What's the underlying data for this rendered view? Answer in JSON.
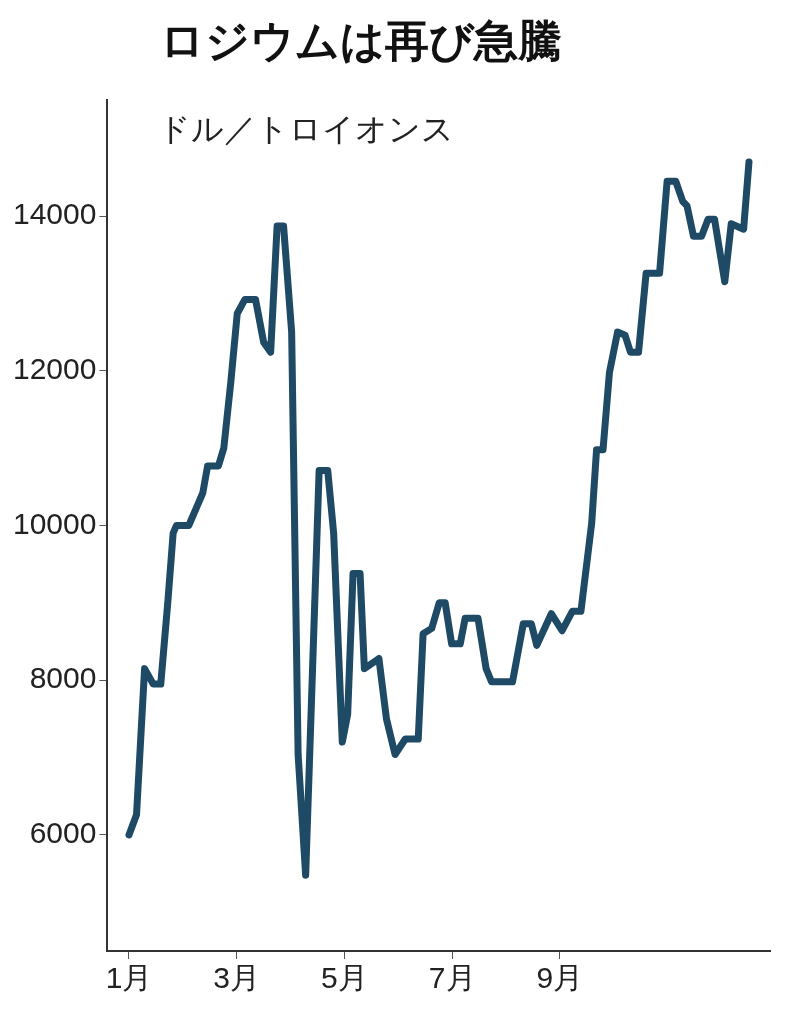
{
  "chart_data": {
    "type": "line",
    "title": "ロジウムは再び急騰",
    "ylabel": "ドル／トロイオンス",
    "x": [
      1.0,
      1.14,
      1.29,
      1.45,
      1.59,
      1.72,
      1.82,
      1.88,
      2.11,
      2.37,
      2.46,
      2.66,
      2.76,
      2.89,
      3.01,
      3.15,
      3.35,
      3.5,
      3.63,
      3.75,
      3.87,
      4.02,
      4.14,
      4.28,
      4.38,
      4.53,
      4.69,
      4.8,
      4.96,
      5.06,
      5.16,
      5.29,
      5.37,
      5.64,
      5.78,
      5.94,
      6.13,
      6.37,
      6.46,
      6.62,
      6.76,
      6.87,
      6.99,
      7.15,
      7.24,
      7.48,
      7.63,
      7.73,
      8.12,
      8.32,
      8.47,
      8.57,
      8.84,
      9.04,
      9.23,
      9.39,
      9.59,
      9.68,
      9.8,
      9.92,
      10.07,
      10.21,
      10.31,
      10.46,
      10.6,
      10.85,
      10.99,
      11.15,
      11.28,
      11.36,
      11.48,
      11.63,
      11.75,
      11.87,
      12.06,
      12.18,
      12.41,
      12.51
    ],
    "series": [
      {
        "color": "#1e4a66",
        "values": [
          6000,
          6260,
          8150,
          7950,
          7950,
          9000,
          9900,
          10000,
          10000,
          10420,
          10770,
          10770,
          11000,
          11850,
          12740,
          12920,
          12920,
          12370,
          12240,
          13870,
          13870,
          12500,
          7040,
          5480,
          7560,
          10710,
          10710,
          9900,
          7200,
          7560,
          9380,
          9380,
          8150,
          8280,
          7500,
          7040,
          7240,
          7240,
          8600,
          8670,
          9000,
          9000,
          8470,
          8470,
          8800,
          8800,
          8150,
          7980,
          7980,
          8730,
          8730,
          8450,
          8860,
          8640,
          8890,
          8890,
          10030,
          10980,
          10980,
          11980,
          12500,
          12460,
          12240,
          12240,
          13260,
          13260,
          14450,
          14450,
          14190,
          14130,
          13740,
          13740,
          13960,
          13960,
          13150,
          13900,
          13830,
          14700
        ]
      }
    ],
    "xlim": [
      0.6,
      12.9
    ],
    "xticks": [
      {
        "value": 1,
        "label": "1月"
      },
      {
        "value": 3,
        "label": "3月"
      },
      {
        "value": 5,
        "label": "5月"
      },
      {
        "value": 7,
        "label": "7月"
      },
      {
        "value": 9,
        "label": "9月"
      }
    ],
    "ylim": [
      4500,
      15500
    ],
    "yticks": [
      6000,
      8000,
      10000,
      12000,
      14000
    ],
    "grid": false,
    "legend": false,
    "marker": "none",
    "line_style": "solid"
  }
}
